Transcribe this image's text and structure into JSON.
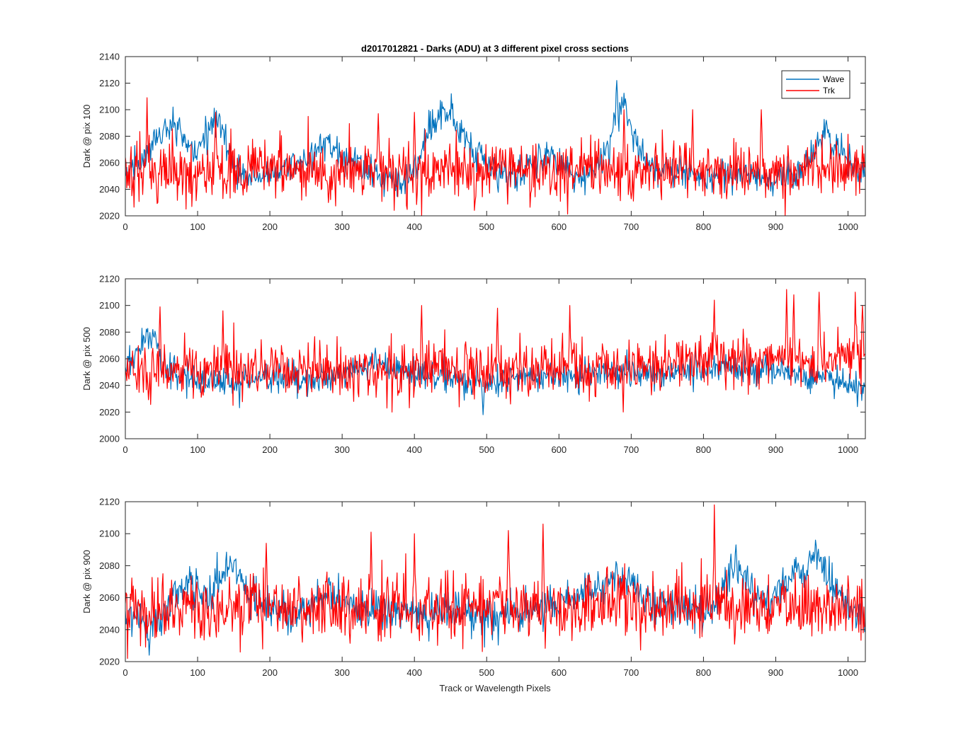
{
  "figure": {
    "title": "d2017012821 - Darks (ADU) at 3 different pixel cross sections",
    "xlabel": "Track or Wavelength Pixels"
  },
  "legend": {
    "placement": "top-right of first panel",
    "entries": [
      {
        "name": "Wave",
        "color": "#0072BD"
      },
      {
        "name": "Trk",
        "color": "#FF0000"
      }
    ]
  },
  "chart_data": [
    {
      "type": "line",
      "ylabel": "Dark @ pix 100",
      "xlim": [
        0,
        1024
      ],
      "ylim": [
        2020,
        2140
      ],
      "xticks": [
        0,
        100,
        200,
        300,
        400,
        500,
        600,
        700,
        800,
        900,
        1000
      ],
      "yticks": [
        2020,
        2040,
        2060,
        2080,
        2100,
        2120,
        2140
      ],
      "series": [
        {
          "name": "Wave",
          "color": "#0072BD",
          "baseline": [
            [
              0,
              2048
            ],
            [
              10,
              2055
            ],
            [
              20,
              2060
            ],
            [
              30,
              2066
            ],
            [
              40,
              2072
            ],
            [
              50,
              2082
            ],
            [
              60,
              2086
            ],
            [
              70,
              2088
            ],
            [
              80,
              2082
            ],
            [
              90,
              2072
            ],
            [
              100,
              2068
            ],
            [
              110,
              2080
            ],
            [
              120,
              2090
            ],
            [
              130,
              2092
            ],
            [
              140,
              2075
            ],
            [
              150,
              2058
            ],
            [
              160,
              2052
            ],
            [
              170,
              2050
            ],
            [
              180,
              2048
            ],
            [
              190,
              2050
            ],
            [
              200,
              2052
            ],
            [
              220,
              2058
            ],
            [
              240,
              2060
            ],
            [
              260,
              2066
            ],
            [
              270,
              2074
            ],
            [
              280,
              2074
            ],
            [
              300,
              2064
            ],
            [
              320,
              2060
            ],
            [
              340,
              2052
            ],
            [
              360,
              2046
            ],
            [
              380,
              2044
            ],
            [
              400,
              2052
            ],
            [
              410,
              2070
            ],
            [
              420,
              2086
            ],
            [
              430,
              2094
            ],
            [
              440,
              2096
            ],
            [
              450,
              2098
            ],
            [
              460,
              2086
            ],
            [
              470,
              2074
            ],
            [
              480,
              2070
            ],
            [
              490,
              2066
            ],
            [
              500,
              2058
            ],
            [
              520,
              2050
            ],
            [
              540,
              2048
            ],
            [
              560,
              2060
            ],
            [
              580,
              2064
            ],
            [
              600,
              2060
            ],
            [
              620,
              2052
            ],
            [
              640,
              2050
            ],
            [
              660,
              2062
            ],
            [
              670,
              2078
            ],
            [
              680,
              2096
            ],
            [
              690,
              2104
            ],
            [
              700,
              2084
            ],
            [
              710,
              2068
            ],
            [
              720,
              2060
            ],
            [
              740,
              2054
            ],
            [
              760,
              2056
            ],
            [
              780,
              2054
            ],
            [
              800,
              2052
            ],
            [
              820,
              2050
            ],
            [
              840,
              2052
            ],
            [
              860,
              2052
            ],
            [
              880,
              2044
            ],
            [
              900,
              2050
            ],
            [
              920,
              2050
            ],
            [
              940,
              2056
            ],
            [
              960,
              2076
            ],
            [
              970,
              2080
            ],
            [
              980,
              2072
            ],
            [
              1000,
              2060
            ],
            [
              1024,
              2052
            ]
          ],
          "peaks": [
            [
              680,
              2122
            ],
            [
              440,
              2102
            ],
            [
              130,
              2097
            ],
            [
              75,
              2094
            ],
            [
              970,
              2092
            ],
            [
              40,
              2085
            ]
          ],
          "noise": 6,
          "clip": [
            2020,
            2125
          ]
        },
        {
          "name": "Trk",
          "color": "#FF0000",
          "baseline": [
            [
              0,
              2054
            ],
            [
              1024,
              2054
            ]
          ],
          "peaks": [
            [
              30,
              2109
            ],
            [
              125,
              2098
            ],
            [
              690,
              2100
            ],
            [
              785,
              2100
            ],
            [
              880,
              2100
            ],
            [
              400,
              2098
            ],
            [
              350,
              2097
            ]
          ],
          "noise": 11,
          "clip": [
            2020,
            2110
          ]
        }
      ]
    },
    {
      "type": "line",
      "ylabel": "Dark @ pix 500",
      "xlim": [
        0,
        1024
      ],
      "ylim": [
        2000,
        2120
      ],
      "xticks": [
        0,
        100,
        200,
        300,
        400,
        500,
        600,
        700,
        800,
        900,
        1000
      ],
      "yticks": [
        2000,
        2020,
        2040,
        2060,
        2080,
        2100,
        2120
      ],
      "series": [
        {
          "name": "Wave",
          "color": "#0072BD",
          "baseline": [
            [
              0,
              2056
            ],
            [
              10,
              2060
            ],
            [
              20,
              2066
            ],
            [
              30,
              2074
            ],
            [
              40,
              2076
            ],
            [
              50,
              2058
            ],
            [
              60,
              2046
            ],
            [
              100,
              2044
            ],
            [
              150,
              2042
            ],
            [
              200,
              2046
            ],
            [
              250,
              2044
            ],
            [
              300,
              2048
            ],
            [
              330,
              2054
            ],
            [
              350,
              2058
            ],
            [
              370,
              2054
            ],
            [
              400,
              2050
            ],
            [
              420,
              2046
            ],
            [
              450,
              2044
            ],
            [
              500,
              2042
            ],
            [
              550,
              2046
            ],
            [
              600,
              2046
            ],
            [
              650,
              2050
            ],
            [
              700,
              2050
            ],
            [
              750,
              2048
            ],
            [
              800,
              2052
            ],
            [
              850,
              2054
            ],
            [
              880,
              2052
            ],
            [
              900,
              2050
            ],
            [
              950,
              2048
            ],
            [
              1000,
              2042
            ],
            [
              1024,
              2038
            ]
          ],
          "peaks": [
            [
              38,
              2082
            ],
            [
              495,
              2018
            ]
          ],
          "noise": 5.5,
          "clip": [
            2015,
            2085
          ]
        },
        {
          "name": "Trk",
          "color": "#FF0000",
          "baseline": [
            [
              0,
              2050
            ],
            [
              400,
              2052
            ],
            [
              700,
              2053
            ],
            [
              850,
              2056
            ],
            [
              900,
              2060
            ],
            [
              1024,
              2060
            ]
          ],
          "peaks": [
            [
              48,
              2099
            ],
            [
              135,
              2096
            ],
            [
              410,
              2100
            ],
            [
              515,
              2098
            ],
            [
              615,
              2100
            ],
            [
              815,
              2104
            ],
            [
              915,
              2112
            ],
            [
              925,
              2108
            ],
            [
              960,
              2110
            ],
            [
              1010,
              2110
            ],
            [
              1020,
              2100
            ]
          ],
          "noise": 10,
          "clip": [
            2020,
            2113
          ]
        }
      ]
    },
    {
      "type": "line",
      "ylabel": "Dark @ pix 900",
      "xlim": [
        0,
        1024
      ],
      "ylim": [
        2020,
        2120
      ],
      "xticks": [
        0,
        100,
        200,
        300,
        400,
        500,
        600,
        700,
        800,
        900,
        1000
      ],
      "yticks": [
        2020,
        2040,
        2060,
        2080,
        2100,
        2120
      ],
      "series": [
        {
          "name": "Wave",
          "color": "#0072BD",
          "baseline": [
            [
              0,
              2050
            ],
            [
              20,
              2044
            ],
            [
              35,
              2040
            ],
            [
              50,
              2046
            ],
            [
              70,
              2064
            ],
            [
              90,
              2070
            ],
            [
              100,
              2068
            ],
            [
              120,
              2060
            ],
            [
              140,
              2078
            ],
            [
              150,
              2080
            ],
            [
              170,
              2062
            ],
            [
              200,
              2052
            ],
            [
              230,
              2050
            ],
            [
              260,
              2056
            ],
            [
              280,
              2062
            ],
            [
              300,
              2058
            ],
            [
              320,
              2052
            ],
            [
              350,
              2050
            ],
            [
              400,
              2050
            ],
            [
              450,
              2052
            ],
            [
              500,
              2048
            ],
            [
              550,
              2050
            ],
            [
              600,
              2054
            ],
            [
              650,
              2066
            ],
            [
              680,
              2074
            ],
            [
              700,
              2068
            ],
            [
              720,
              2058
            ],
            [
              760,
              2054
            ],
            [
              800,
              2052
            ],
            [
              820,
              2058
            ],
            [
              840,
              2078
            ],
            [
              860,
              2072
            ],
            [
              880,
              2056
            ],
            [
              900,
              2060
            ],
            [
              920,
              2072
            ],
            [
              940,
              2082
            ],
            [
              960,
              2086
            ],
            [
              980,
              2066
            ],
            [
              1000,
              2054
            ],
            [
              1024,
              2050
            ]
          ],
          "peaks": [
            [
              33,
              2024
            ],
            [
              145,
              2086
            ],
            [
              845,
              2093
            ],
            [
              955,
              2096
            ],
            [
              680,
              2081
            ]
          ],
          "noise": 6,
          "clip": [
            2022,
            2098
          ]
        },
        {
          "name": "Trk",
          "color": "#FF0000",
          "baseline": [
            [
              0,
              2054
            ],
            [
              1024,
              2054
            ]
          ],
          "peaks": [
            [
              815,
              2118
            ],
            [
              578,
              2106
            ],
            [
              530,
              2102
            ],
            [
              400,
              2100
            ],
            [
              340,
              2101
            ],
            [
              195,
              2094
            ]
          ],
          "noise": 10,
          "clip": [
            2022,
            2119
          ]
        }
      ]
    }
  ]
}
